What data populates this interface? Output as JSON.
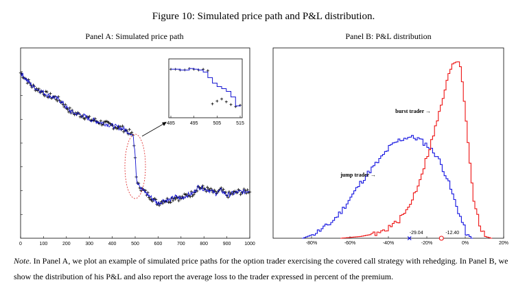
{
  "figure_title": "Figure 10: Simulated price path and P&L distribution.",
  "note": {
    "lead": "Note",
    "text": ". In Panel A, we plot an example of simulated price paths for the option trader exercising the covered call strategy with rehedging. In Panel B, we show the distribution of his P&L and also report the average loss to the trader expressed in percent of the premium."
  },
  "chart_data": [
    {
      "type": "line",
      "title": "Panel A: Simulated price path",
      "xlim": [
        0,
        1000
      ],
      "x_ticks": [
        "0",
        "100",
        "200",
        "300",
        "400",
        "500",
        "600",
        "700",
        "800",
        "900",
        "1000"
      ],
      "series": [
        {
          "marker": "plus",
          "color": "#000000",
          "x": [
            0,
            25,
            50,
            75,
            100,
            125,
            150,
            175,
            200,
            225,
            250,
            275,
            300,
            325,
            350,
            375,
            400,
            425,
            450,
            475,
            490,
            500,
            505,
            510,
            515,
            525,
            550,
            575,
            600,
            625,
            650,
            675,
            700,
            725,
            750,
            775,
            800,
            825,
            850,
            875,
            900,
            925,
            950,
            975,
            1000
          ],
          "y": [
            100,
            96,
            92,
            90,
            88,
            86,
            85,
            83,
            79,
            76,
            75,
            74,
            72,
            71,
            70,
            69,
            68,
            67,
            66,
            64,
            62,
            50,
            36,
            32,
            34,
            30,
            27,
            24,
            21,
            23,
            23,
            25,
            24,
            26,
            27,
            31,
            30,
            29,
            27,
            29,
            26,
            27,
            28,
            28,
            29
          ]
        },
        {
          "marker": "line",
          "color": "#1010d0",
          "x": [
            0,
            25,
            50,
            75,
            100,
            125,
            150,
            175,
            200,
            225,
            250,
            275,
            300,
            325,
            350,
            375,
            400,
            425,
            450,
            475,
            490,
            500,
            505,
            510,
            515,
            525,
            550,
            575,
            600,
            625,
            650,
            675,
            700,
            725,
            750,
            775,
            800,
            825,
            850,
            875,
            900,
            925,
            950,
            975,
            1000
          ],
          "y": [
            100,
            96,
            92,
            90,
            88,
            86,
            85,
            83,
            79,
            76,
            75,
            74,
            72,
            71,
            70,
            69,
            68,
            67,
            66,
            64,
            62,
            52,
            38,
            33,
            34,
            30,
            27,
            24,
            21,
            23,
            23,
            25,
            24,
            26,
            27,
            31,
            30,
            29,
            27,
            29,
            26,
            27,
            28,
            28,
            29
          ]
        }
      ],
      "inset": {
        "x_ticks": [
          "485",
          "495",
          "505",
          "515"
        ],
        "xlim": [
          485,
          515
        ],
        "series": [
          {
            "marker": "plus",
            "color": "#000000",
            "x": [
              485,
              487,
              489,
              491,
              493,
              495,
              497,
              499,
              501,
              503,
              505,
              507,
              509,
              511,
              513,
              515
            ],
            "y": [
              90,
              90,
              89,
              89,
              91,
              90,
              89,
              90,
              88,
              40,
              44,
              47,
              43,
              39,
              36,
              38
            ]
          },
          {
            "marker": "line",
            "color": "#1010d0",
            "x": [
              485,
              487,
              489,
              491,
              493,
              495,
              497,
              499,
              501,
              503,
              505,
              507,
              509,
              511,
              513,
              515
            ],
            "y": [
              90,
              90,
              89,
              89,
              91,
              90,
              89,
              86,
              78,
              70,
              65,
              62,
              58,
              50,
              37,
              38
            ]
          }
        ]
      }
    },
    {
      "type": "area",
      "title": "Panel B: P&L distribution",
      "xlabel_unit": "%",
      "xlim": [
        -100,
        20
      ],
      "x_ticks": [
        "-80%",
        "-60%",
        "-40%",
        "-20%",
        "0%",
        "20%"
      ],
      "ylim": [
        0,
        1
      ],
      "series": [
        {
          "label": "jump trader →",
          "color": "#1010e0",
          "x": [
            -85,
            -80,
            -75,
            -70,
            -65,
            -60,
            -55,
            -50,
            -45,
            -40,
            -35,
            -30,
            -25,
            -20,
            -15,
            -10,
            -5,
            0,
            3
          ],
          "y": [
            0.0,
            0.02,
            0.05,
            0.09,
            0.15,
            0.23,
            0.31,
            0.38,
            0.44,
            0.51,
            0.55,
            0.57,
            0.56,
            0.52,
            0.46,
            0.34,
            0.18,
            0.03,
            0.0
          ]
        },
        {
          "label": "burst trader →",
          "color": "#ee1010",
          "x": [
            -65,
            -55,
            -45,
            -40,
            -35,
            -30,
            -25,
            -20,
            -15,
            -12,
            -10,
            -8,
            -6,
            -4,
            -3,
            -2,
            0,
            2,
            4,
            7,
            10,
            13
          ],
          "y": [
            0.0,
            0.01,
            0.03,
            0.06,
            0.1,
            0.17,
            0.3,
            0.47,
            0.66,
            0.79,
            0.88,
            0.95,
            0.99,
            1.0,
            0.97,
            0.88,
            0.67,
            0.42,
            0.22,
            0.07,
            0.01,
            0.0
          ]
        }
      ],
      "annotations": [
        {
          "label": "-29.04",
          "x": -29.04,
          "marker": "x",
          "color": "#1010e0"
        },
        {
          "label": "-12.40",
          "x": -12.4,
          "marker": "o",
          "color": "#ee1010"
        }
      ]
    }
  ]
}
